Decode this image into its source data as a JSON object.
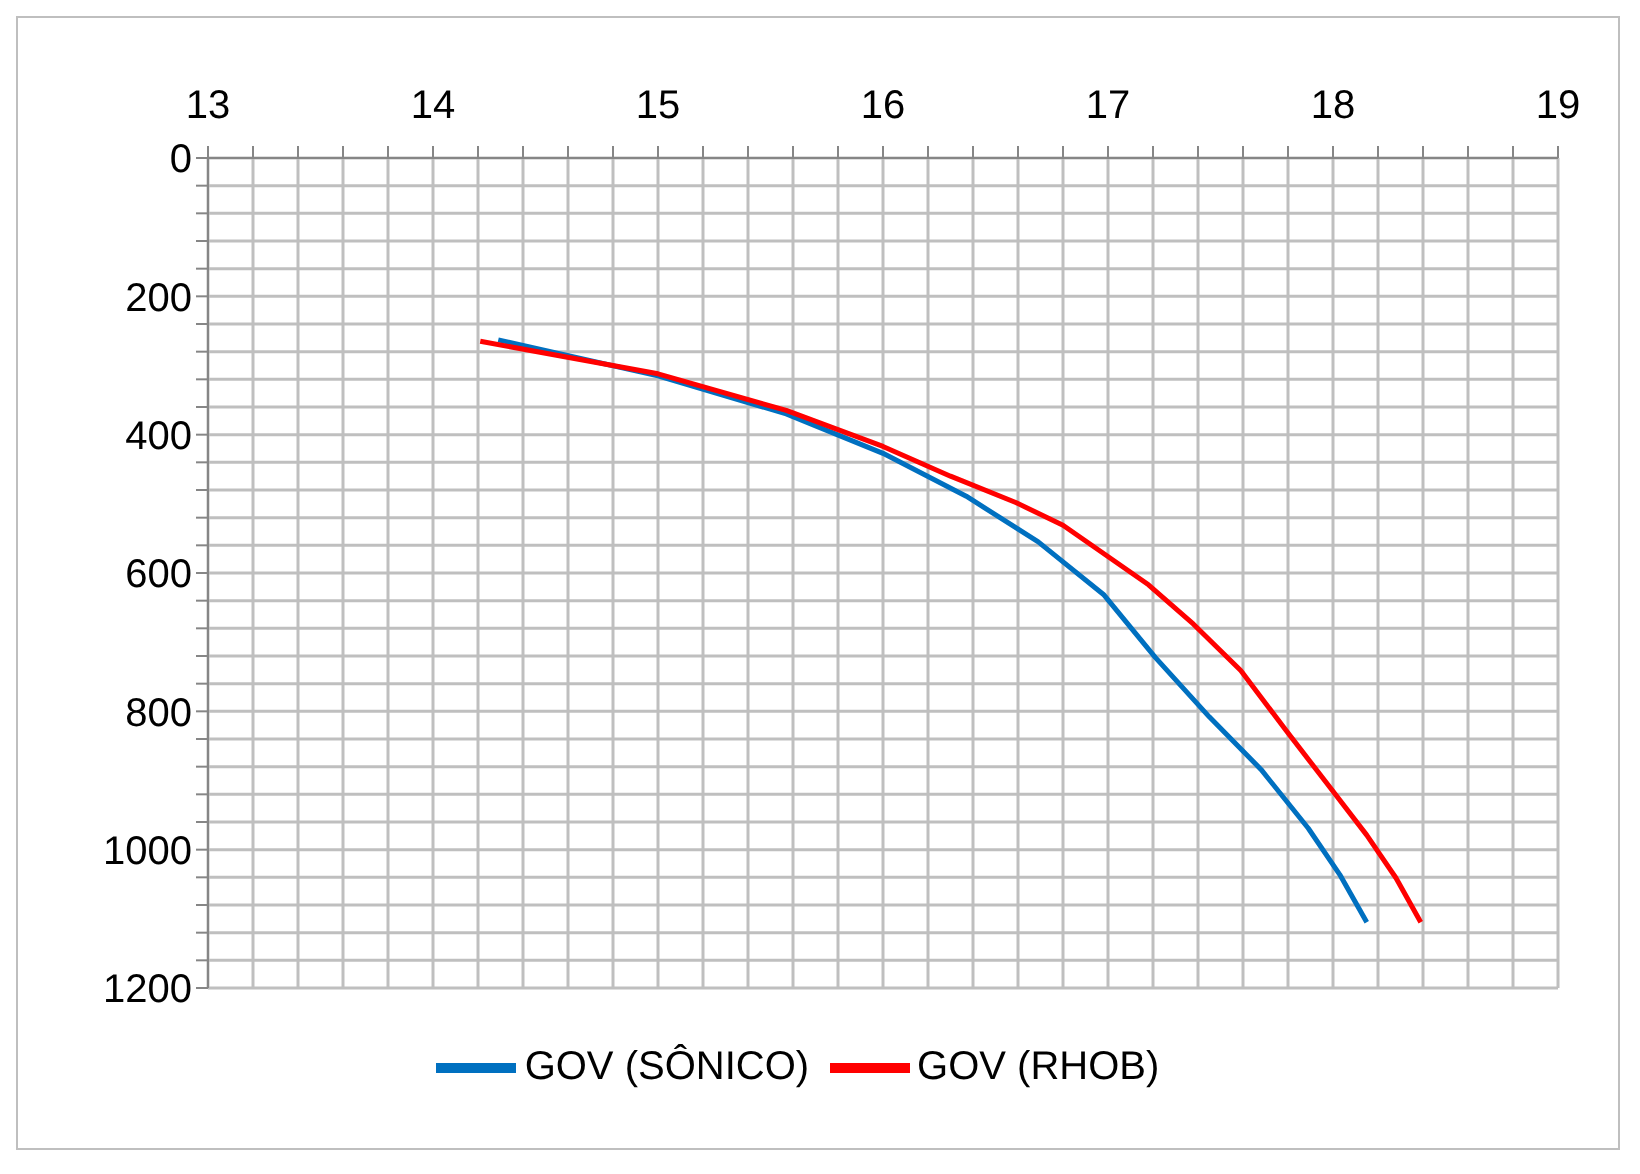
{
  "chart_data": {
    "type": "line",
    "series": [
      {
        "name": "GOV (SÔNICO)",
        "color": "#0070c0",
        "x": [
          14.29,
          15.0,
          15.57,
          16.0,
          16.37,
          16.69,
          16.98,
          17.21,
          17.45,
          17.68,
          17.89,
          18.03,
          18.15
        ],
        "values": [
          263,
          315,
          370,
          427,
          489,
          555,
          631,
          722,
          808,
          884,
          969,
          1036,
          1105
        ]
      },
      {
        "name": "GOV (RHOB)",
        "color": "#ff0000",
        "x": [
          14.21,
          15.0,
          15.57,
          16.0,
          16.3,
          16.59,
          16.8,
          16.99,
          17.18,
          17.38,
          17.59,
          17.79,
          17.97,
          18.15,
          18.28,
          18.39
        ],
        "values": [
          265,
          312,
          365,
          417,
          460,
          498,
          531,
          574,
          617,
          674,
          741,
          827,
          903,
          979,
          1041,
          1105
        ]
      }
    ],
    "xlim": [
      13,
      19
    ],
    "xticks": [
      13,
      {
        "value": 13.2,
        "label": null
      },
      {
        "value": 13.4,
        "label": null
      },
      {
        "value": 13.6,
        "label": null
      },
      {
        "value": 13.8,
        "label": null
      },
      14,
      {
        "value": 14.2,
        "label": null
      },
      {
        "value": 14.4,
        "label": null
      },
      {
        "value": 14.6,
        "label": null
      },
      {
        "value": 14.8,
        "label": null
      },
      15,
      {
        "value": 15.2,
        "label": null
      },
      {
        "value": 15.4,
        "label": null
      },
      {
        "value": 15.6,
        "label": null
      },
      {
        "value": 15.8,
        "label": null
      },
      16,
      {
        "value": 16.2,
        "label": null
      },
      {
        "value": 16.4,
        "label": null
      },
      {
        "value": 16.6,
        "label": null
      },
      {
        "value": 16.8,
        "label": null
      },
      17,
      {
        "value": 17.2,
        "label": null
      },
      {
        "value": 17.4,
        "label": null
      },
      {
        "value": 17.6,
        "label": null
      },
      {
        "value": 17.8,
        "label": null
      },
      18,
      {
        "value": 18.2,
        "label": null
      },
      {
        "value": 18.4,
        "label": null
      },
      {
        "value": 18.6,
        "label": null
      },
      {
        "value": 18.8,
        "label": null
      },
      19
    ],
    "ylim": [
      1200,
      0
    ],
    "yticks": [
      0,
      {
        "value": 40,
        "label": null
      },
      {
        "value": 80,
        "label": null
      },
      {
        "value": 120,
        "label": null
      },
      {
        "value": 160,
        "label": null
      },
      200,
      {
        "value": 240,
        "label": null
      },
      {
        "value": 280,
        "label": null
      },
      {
        "value": 320,
        "label": null
      },
      {
        "value": 360,
        "label": null
      },
      400,
      {
        "value": 440,
        "label": null
      },
      {
        "value": 480,
        "label": null
      },
      {
        "value": 520,
        "label": null
      },
      {
        "value": 560,
        "label": null
      },
      600,
      {
        "value": 640,
        "label": null
      },
      {
        "value": 680,
        "label": null
      },
      {
        "value": 720,
        "label": null
      },
      {
        "value": 760,
        "label": null
      },
      800,
      {
        "value": 840,
        "label": null
      },
      {
        "value": 880,
        "label": null
      },
      {
        "value": 920,
        "label": null
      },
      {
        "value": 960,
        "label": null
      },
      1000,
      {
        "value": 1040,
        "label": null
      },
      {
        "value": 1080,
        "label": null
      },
      {
        "value": 1120,
        "label": null
      },
      {
        "value": 1160,
        "label": null
      },
      1200
    ],
    "grid": true,
    "legend": "bottom",
    "marker": "none",
    "line_style": "solid"
  }
}
